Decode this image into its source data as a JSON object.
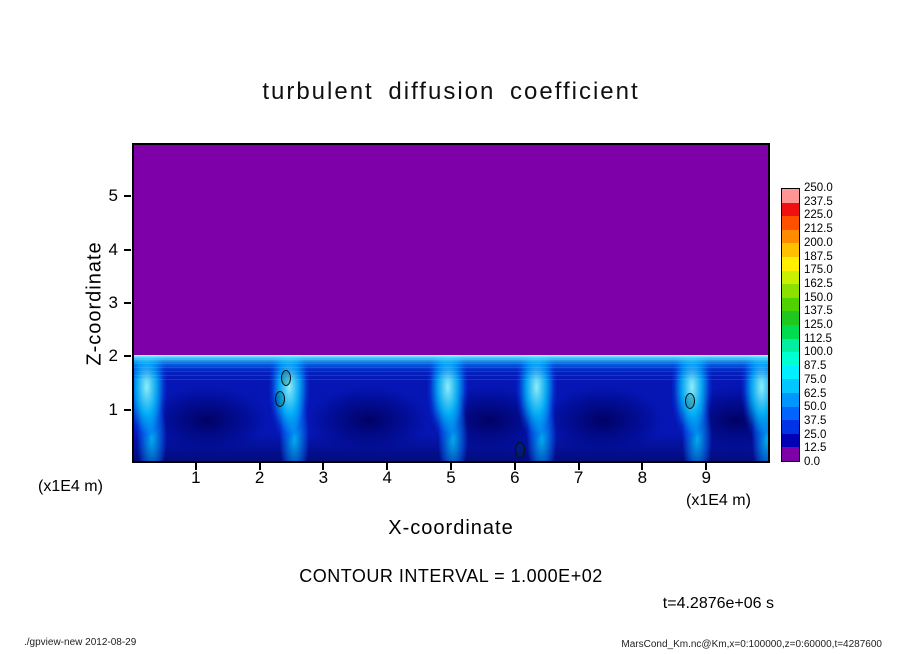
{
  "title": "turbulent diffusion coefficient",
  "axes": {
    "x_label": "X-coordinate",
    "y_label": "Z-coordinate",
    "x_unit_left": "(x1E4 m)",
    "x_unit_right": "(x1E4 m)",
    "x_ticks": [
      "1",
      "2",
      "3",
      "4",
      "5",
      "6",
      "7",
      "8",
      "9"
    ],
    "y_ticks": [
      "1",
      "2",
      "3",
      "4",
      "5"
    ]
  },
  "annotations": {
    "contour_interval_text": "CONTOUR INTERVAL = 1.000E+02",
    "time_text": "t=4.2876e+06 s"
  },
  "footer": {
    "left": "./gpview-new  2012-08-29",
    "right": "MarsCond_Km.nc@Km,x=0:100000,z=0:60000,t=4287600"
  },
  "colorbar": {
    "tick_labels": [
      "250.0",
      "237.5",
      "225.0",
      "212.5",
      "200.0",
      "187.5",
      "175.0",
      "162.5",
      "150.0",
      "137.5",
      "125.0",
      "112.5",
      "100.0",
      "87.5",
      "75.0",
      "62.5",
      "50.0",
      "37.5",
      "25.0",
      "12.5",
      "0.0"
    ],
    "colors_top_to_bottom": [
      "#ff9494",
      "#f01010",
      "#ff5000",
      "#ff8c00",
      "#ffc000",
      "#fff000",
      "#c8f000",
      "#8ce100",
      "#50d200",
      "#1ec81e",
      "#00dc50",
      "#00f0a0",
      "#00ffd2",
      "#00f0ff",
      "#00c8ff",
      "#0096ff",
      "#0064ff",
      "#0032e6",
      "#0000b4",
      "#7d00a8"
    ]
  },
  "chart_data": {
    "type": "heatmap",
    "title": "turbulent diffusion coefficient",
    "xlabel": "X-coordinate",
    "ylabel": "Z-coordinate",
    "x_unit": "x1E4 m",
    "z_unit": "x1E4 m",
    "x_range_x1e4": [
      0,
      10
    ],
    "z_range_x1e4": [
      0,
      6
    ],
    "x_tick_step_x1e4": 1,
    "z_tick_step_x1e4": 1,
    "value_levels": {
      "min": 0.0,
      "max": 250.0,
      "step": 12.5
    },
    "contour_interval": 100.0,
    "time_s": "4.2876e+06",
    "field_summary": {
      "upper_region": "value in lowest bin (~0, purple) everywhere above z = 2 x1E4 m",
      "boundary_layer_top_x1e4": 2.0,
      "boundary_layer": "convective cells below z = 2 x1E4 m; mostly 12.5-62.5 (dark/medium blues) with bright plumes reaching ~87.5-112.5 (cyan) along cell edges and a thin high-value band just below the interface",
      "plume_positions_x1e4": [
        0.2,
        2.45,
        4.95,
        6.35,
        8.8,
        9.9
      ],
      "cell_core_positions_x1e4": [
        1.15,
        3.7,
        5.6,
        7.4,
        9.5
      ],
      "closed_contour_spots_x1e4": [
        {
          "x": 2.38,
          "z": 1.6
        },
        {
          "x": 2.28,
          "z": 1.2
        },
        {
          "x": 6.08,
          "z": 0.22
        },
        {
          "x": 8.75,
          "z": 1.15
        }
      ]
    },
    "grid": false,
    "legend_position": "right-colorbar"
  }
}
